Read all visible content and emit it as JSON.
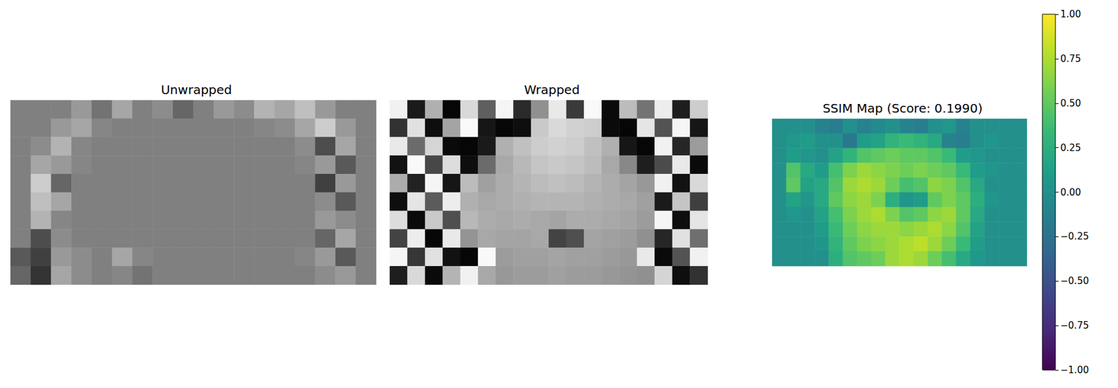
{
  "chart_data": [
    {
      "type": "heatmap",
      "title": "Unwrapped",
      "color": "gray",
      "tick_labels": false,
      "color_range": [
        -1,
        1
      ],
      "cells": [
        [
          0,
          0,
          0,
          0.2,
          -0.1,
          0.3,
          0,
          0.1,
          -0.2,
          0,
          0.2,
          0.1,
          0.4,
          0.3,
          0.5,
          0.2,
          0,
          0
        ],
        [
          0,
          0,
          0.2,
          0.3,
          0.05,
          0,
          0,
          0,
          0,
          0,
          0,
          0,
          0.05,
          0.1,
          0.3,
          0.6,
          0.2,
          0
        ],
        [
          0,
          0.1,
          0.4,
          0.05,
          0,
          0,
          0,
          0,
          0,
          0,
          0,
          0,
          0,
          0,
          0.1,
          -0.4,
          0.3,
          0
        ],
        [
          0,
          0.3,
          0.2,
          0.05,
          0,
          0,
          0,
          0,
          0,
          0,
          0,
          0,
          0,
          0,
          0.05,
          0.2,
          -0.3,
          0
        ],
        [
          0,
          0.6,
          -0.2,
          0,
          0,
          0,
          0,
          0,
          0,
          0,
          0,
          0,
          0,
          0,
          0,
          -0.5,
          0.2,
          0
        ],
        [
          0,
          0.5,
          0.3,
          0,
          0,
          0,
          0,
          0,
          0,
          0,
          0,
          0,
          0,
          0,
          0,
          0.1,
          -0.3,
          0
        ],
        [
          0,
          0.4,
          0.05,
          0,
          0,
          0,
          0,
          0,
          0,
          0,
          0,
          0,
          0,
          0,
          0,
          0.2,
          0.1,
          0
        ],
        [
          0,
          -0.4,
          0.1,
          0,
          0,
          0,
          0,
          0,
          0,
          0,
          0,
          0,
          0,
          0,
          0,
          -0.2,
          0.3,
          0
        ],
        [
          -0.3,
          -0.5,
          0.2,
          0.1,
          0,
          0.3,
          0.05,
          0,
          0,
          0,
          0,
          0,
          0,
          0,
          0.05,
          0.2,
          -0.3,
          0
        ],
        [
          -0.2,
          -0.6,
          0.3,
          0.1,
          0,
          0.05,
          -0.1,
          0,
          0,
          0,
          0,
          0,
          0,
          0,
          0,
          0.1,
          0.2,
          0
        ]
      ]
    },
    {
      "type": "heatmap",
      "title": "Wrapped",
      "color": "gray",
      "tick_labels": false,
      "color_range": [
        -3.14,
        3.14
      ],
      "cells": [
        [
          2.8,
          -2.5,
          1.2,
          -3,
          2.2,
          -0.8,
          2.9,
          -2.1,
          0.4,
          2.6,
          -1.7,
          3,
          -2.9,
          1.5,
          -0.3,
          2.7,
          -2.4,
          1.9
        ],
        [
          -1.9,
          2.4,
          -2.8,
          0.9,
          3,
          -2.6,
          -3,
          -2.8,
          1.8,
          2.2,
          2.0,
          1.9,
          -2.9,
          -3,
          2.5,
          -1.1,
          2.9,
          -2.6
        ],
        [
          2.6,
          -0.5,
          2.1,
          -2.9,
          -3,
          -2.5,
          1.2,
          1.6,
          1.9,
          2.0,
          1.9,
          1.6,
          1.2,
          -2.6,
          -3,
          2.8,
          -2.2,
          0.7
        ],
        [
          -2.7,
          3,
          -1.4,
          2.3,
          -2.8,
          -0.5,
          1.0,
          1.4,
          1.7,
          1.8,
          1.7,
          1.5,
          1.0,
          0.2,
          -2.4,
          -1.3,
          2.6,
          -2.9
        ],
        [
          1.1,
          -2.3,
          2.9,
          -2.6,
          1.5,
          0.8,
          1.1,
          1.3,
          1.5,
          1.6,
          1.5,
          1.3,
          1.1,
          0.9,
          0.6,
          2.8,
          -2.7,
          2.2
        ],
        [
          -2.8,
          2.5,
          -0.9,
          2.7,
          1.2,
          1.0,
          1.1,
          1.2,
          1.3,
          1.3,
          1.3,
          1.2,
          1.1,
          1.0,
          0.8,
          -2.5,
          1.7,
          -1.6
        ],
        [
          2.3,
          -2.9,
          1.8,
          -1.2,
          1.4,
          1.1,
          1.0,
          1.1,
          1.0,
          0.9,
          1.1,
          1.1,
          1.0,
          0.9,
          0.7,
          2.9,
          -2.8,
          2.5
        ],
        [
          -1.5,
          2.7,
          -3,
          2.6,
          0.5,
          1.0,
          0.9,
          0.9,
          1.0,
          -1.5,
          -1.2,
          0.9,
          0.8,
          0.7,
          0.4,
          -2.2,
          2.4,
          -0.4
        ],
        [
          2.9,
          -1.8,
          2.4,
          -2.7,
          -3,
          3,
          0.7,
          0.8,
          0.8,
          0.9,
          0.8,
          0.8,
          0.7,
          0.6,
          2.6,
          -2.9,
          -1.1,
          2.8
        ],
        [
          -2.4,
          2.2,
          -2.9,
          1.3,
          2.8,
          1.0,
          0.6,
          0.7,
          0.7,
          0.8,
          0.7,
          0.7,
          0.6,
          0.5,
          0.4,
          2.1,
          -2.8,
          -1.9
        ]
      ]
    },
    {
      "type": "heatmap",
      "title": "SSIM Map (Score: 0.1990)",
      "color": "viridis",
      "tick_labels": false,
      "colorbar": {
        "range": [
          -1,
          1
        ],
        "ticks": [
          {
            "value": 1,
            "label": "1.00"
          },
          {
            "value": 0.75,
            "label": "0.75"
          },
          {
            "value": 0.5,
            "label": "0.50"
          },
          {
            "value": 0.25,
            "label": "0.25"
          },
          {
            "value": 0,
            "label": "0.00"
          },
          {
            "value": -0.25,
            "label": "−0.25"
          },
          {
            "value": -0.5,
            "label": "−0.50"
          },
          {
            "value": -0.75,
            "label": "−0.75"
          },
          {
            "value": -1,
            "label": "−1.00"
          }
        ]
      },
      "cells": [
        [
          0,
          0,
          0,
          -0.1,
          -0.15,
          0,
          -0.1,
          -0.05,
          0,
          -0.1,
          -0.15,
          0,
          0.05,
          -0.1,
          0,
          0,
          0,
          0
        ],
        [
          0,
          0.05,
          0.1,
          0,
          0,
          -0.2,
          0.1,
          0.15,
          0.3,
          0.35,
          0.3,
          0.2,
          -0.1,
          -0.15,
          0,
          0.05,
          0,
          0
        ],
        [
          0,
          0.1,
          0.05,
          0,
          0.15,
          0.3,
          0.45,
          0.5,
          0.55,
          0.5,
          0.5,
          0.45,
          0.35,
          0.1,
          0.05,
          0,
          0,
          0
        ],
        [
          0,
          0.45,
          0.2,
          0.1,
          0.4,
          0.6,
          0.7,
          0.65,
          0.6,
          0.55,
          0.6,
          0.55,
          0.5,
          0.35,
          0.1,
          0.05,
          0,
          0
        ],
        [
          0,
          0.5,
          0.15,
          0.2,
          0.45,
          0.7,
          0.75,
          0.7,
          0.55,
          0.4,
          0.45,
          0.65,
          0.6,
          0.45,
          0.2,
          0,
          0,
          0
        ],
        [
          0,
          0.15,
          0.05,
          0.2,
          0.5,
          0.65,
          0.7,
          0.6,
          0.25,
          0.05,
          0.1,
          0.5,
          0.6,
          0.5,
          0.25,
          0.05,
          0,
          0
        ],
        [
          0,
          0.05,
          0,
          0.15,
          0.4,
          0.6,
          0.7,
          0.75,
          0.6,
          0.45,
          0.5,
          0.65,
          0.7,
          0.5,
          0.2,
          0,
          0,
          0
        ],
        [
          0,
          0,
          0,
          0.1,
          0.35,
          0.55,
          0.65,
          0.7,
          0.7,
          0.65,
          0.7,
          0.75,
          0.65,
          0.45,
          0.15,
          0,
          0,
          0
        ],
        [
          0,
          0,
          0,
          0.05,
          0.3,
          0.5,
          0.6,
          0.65,
          0.7,
          0.75,
          0.8,
          0.7,
          0.55,
          0.35,
          0.1,
          0,
          0,
          0
        ],
        [
          0,
          0,
          0,
          0,
          0.25,
          0.45,
          0.5,
          0.55,
          0.7,
          0.75,
          0.7,
          0.55,
          0.4,
          0.2,
          0.05,
          0,
          0,
          0
        ]
      ]
    }
  ]
}
